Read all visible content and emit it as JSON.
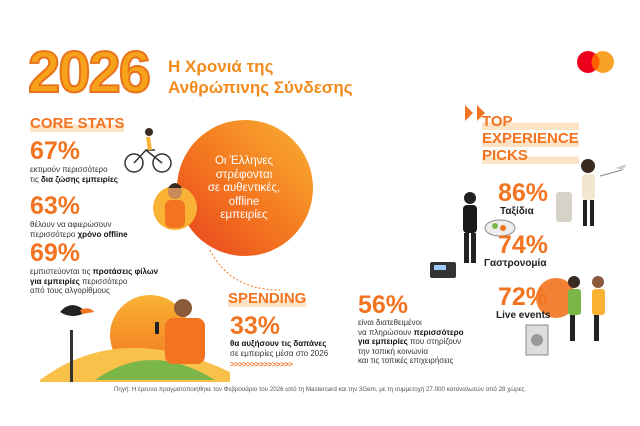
{
  "header": {
    "year": "2026",
    "title_lines": [
      "Η Χρονιά της",
      "Ανθρώπινης Σύνδεσης"
    ]
  },
  "core_stats": {
    "heading": "CORE STATS",
    "items": [
      {
        "value": "67%",
        "description": [
          [
            {
              "text": "εκτιμούν περισσότερο",
              "bold": false
            }
          ],
          [
            {
              "text": "τις ",
              "bold": false
            },
            {
              "text": "δια ζώσης εμπειρίες",
              "bold": true
            }
          ]
        ]
      },
      {
        "value": "63%",
        "description": [
          [
            {
              "text": "θέλουν να αφιερώσουν",
              "bold": false
            }
          ],
          [
            {
              "text": "περισσότερο ",
              "bold": false
            },
            {
              "text": "χρόνο offline",
              "bold": true
            }
          ]
        ]
      },
      {
        "value": "69%",
        "description": [
          [
            {
              "text": "εμπιστεύονται τις ",
              "bold": false
            },
            {
              "text": "προτάσεις φίλων",
              "bold": true
            }
          ],
          [
            {
              "text": "για εμπειρίες",
              "bold": true
            },
            {
              "text": " περισσότερο",
              "bold": false
            }
          ],
          [
            {
              "text": "από τους αλγορίθμους",
              "bold": false
            }
          ]
        ]
      }
    ]
  },
  "center_message": [
    "Οι Έλληνες",
    "στρέφονται",
    "σε αυθεντικές,",
    "offline",
    "εμπειρίες"
  ],
  "top_picks": {
    "heading_lines": [
      "TOP",
      "EXPERIENCE",
      "PICKS"
    ],
    "items": [
      {
        "value": "86%",
        "label": "Ταξίδια"
      },
      {
        "value": "74%",
        "label": "Γαστρονομία"
      },
      {
        "value": "72%",
        "label": "Live events"
      }
    ]
  },
  "spending": {
    "heading": "SPENDING",
    "value": "33%",
    "description": [
      [
        {
          "text": "θα αυξήσουν τις δαπάνες",
          "bold": true
        }
      ],
      [
        {
          "text": "σε εμπειρίες μέσα στο 2026",
          "bold": false
        }
      ]
    ],
    "arrows": ">>>>>>>>>>>>>>>"
  },
  "local_support": {
    "value": "56%",
    "description": [
      [
        {
          "text": "είναι διατεθειμένοι",
          "bold": false
        }
      ],
      [
        {
          "text": "να πληρώσουν ",
          "bold": false
        },
        {
          "text": "περισσότερο",
          "bold": true
        }
      ],
      [
        {
          "text": "για εμπειρίες",
          "bold": true
        },
        {
          "text": " που στηρίζουν",
          "bold": false
        }
      ],
      [
        {
          "text": "την τοπική κοινωνία",
          "bold": false
        }
      ],
      [
        {
          "text": "και τις τοπικές επιχειρήσεις",
          "bold": false
        }
      ]
    ]
  },
  "footer": {
    "source": "Πηγή: Η έρευνα πραγματοποιήθηκε τον Φεβρουάριο του 2026 από τη Mastercard και την 3Gem, με τη συμμετοχή 27.000 καταναλωτών από 28 χώρες."
  }
}
